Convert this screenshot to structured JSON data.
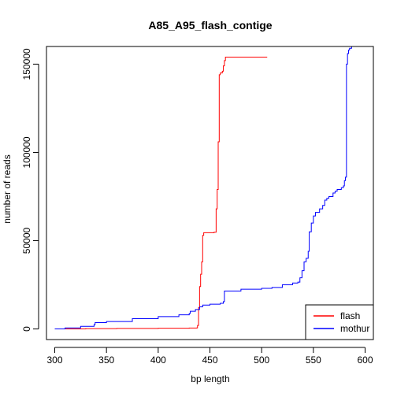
{
  "chart_data": {
    "type": "line",
    "title": "A85_A95_flash_contige",
    "xlabel": "bp length",
    "ylabel": "number of reads",
    "xlim": [
      292,
      608
    ],
    "ylim": [
      -6000,
      160000
    ],
    "x_ticks": [
      300,
      350,
      400,
      450,
      500,
      550,
      600
    ],
    "x_tick_labels": [
      "300",
      "350",
      "400",
      "450",
      "500",
      "550",
      "600"
    ],
    "y_ticks": [
      0,
      50000,
      100000,
      150000
    ],
    "y_tick_labels": [
      "0",
      "50000",
      "100000",
      "150000"
    ],
    "grid": false,
    "legend_position": "bottom-right",
    "series": [
      {
        "name": "flash",
        "color": "#ff0000",
        "step": true,
        "points": [
          [
            300,
            0
          ],
          [
            330,
            200
          ],
          [
            360,
            300
          ],
          [
            400,
            400
          ],
          [
            430,
            500
          ],
          [
            437,
            600
          ],
          [
            438,
            2000
          ],
          [
            439,
            12000
          ],
          [
            440,
            24000
          ],
          [
            441,
            31000
          ],
          [
            442,
            38000
          ],
          [
            443,
            53000
          ],
          [
            444,
            54500
          ],
          [
            454,
            54800
          ],
          [
            456,
            68000
          ],
          [
            457,
            79000
          ],
          [
            458,
            106000
          ],
          [
            459,
            144000
          ],
          [
            460,
            145000
          ],
          [
            462,
            146000
          ],
          [
            463,
            149000
          ],
          [
            464,
            152000
          ],
          [
            465,
            154000
          ],
          [
            505,
            154200
          ]
        ]
      },
      {
        "name": "mothur",
        "color": "#0000ff",
        "step": true,
        "points": [
          [
            300,
            0
          ],
          [
            310,
            600
          ],
          [
            325,
            1500
          ],
          [
            338,
            2500
          ],
          [
            339,
            3600
          ],
          [
            350,
            4200
          ],
          [
            375,
            5800
          ],
          [
            400,
            7000
          ],
          [
            420,
            8000
          ],
          [
            430,
            8800
          ],
          [
            431,
            10000
          ],
          [
            436,
            11000
          ],
          [
            440,
            12500
          ],
          [
            443,
            13500
          ],
          [
            450,
            14000
          ],
          [
            460,
            14500
          ],
          [
            463,
            15500
          ],
          [
            464,
            21500
          ],
          [
            480,
            22500
          ],
          [
            500,
            23000
          ],
          [
            510,
            23500
          ],
          [
            520,
            25000
          ],
          [
            530,
            26000
          ],
          [
            535,
            26500
          ],
          [
            537,
            29000
          ],
          [
            539,
            33000
          ],
          [
            541,
            38000
          ],
          [
            543,
            40000
          ],
          [
            545,
            44000
          ],
          [
            546,
            55000
          ],
          [
            548,
            60000
          ],
          [
            550,
            64000
          ],
          [
            552,
            66000
          ],
          [
            556,
            68000
          ],
          [
            559,
            70000
          ],
          [
            561,
            73000
          ],
          [
            563,
            74000
          ],
          [
            565,
            75000
          ],
          [
            569,
            77000
          ],
          [
            571,
            78000
          ],
          [
            573,
            79000
          ],
          [
            577,
            80000
          ],
          [
            579,
            81000
          ],
          [
            580,
            84000
          ],
          [
            581,
            86000
          ],
          [
            582,
            150000
          ],
          [
            583,
            156000
          ],
          [
            584,
            158000
          ],
          [
            585,
            159000
          ],
          [
            587,
            160000
          ]
        ]
      }
    ]
  }
}
